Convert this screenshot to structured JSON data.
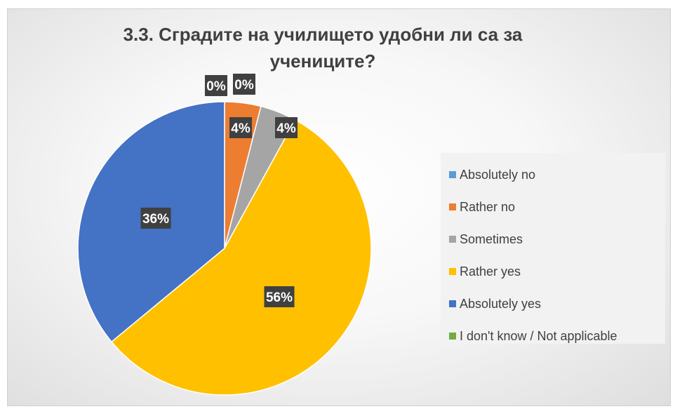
{
  "chart_data": {
    "type": "pie",
    "title": "3.3. Сградите на училището удобни ли са за учениците?",
    "categories": [
      "Absolutely no",
      "Rather no",
      "Sometimes",
      "Rather yes",
      "Absolutely yes",
      "I don't know / Not applicable"
    ],
    "values": [
      0,
      4,
      4,
      56,
      36,
      0
    ],
    "data_labels": [
      "0%",
      "4%",
      "4%",
      "56%",
      "36%",
      "0%"
    ],
    "colors": [
      "#5b9bd5",
      "#ed7d31",
      "#a5a5a5",
      "#ffc000",
      "#4472c4",
      "#70ad47"
    ],
    "legend_position": "right"
  }
}
